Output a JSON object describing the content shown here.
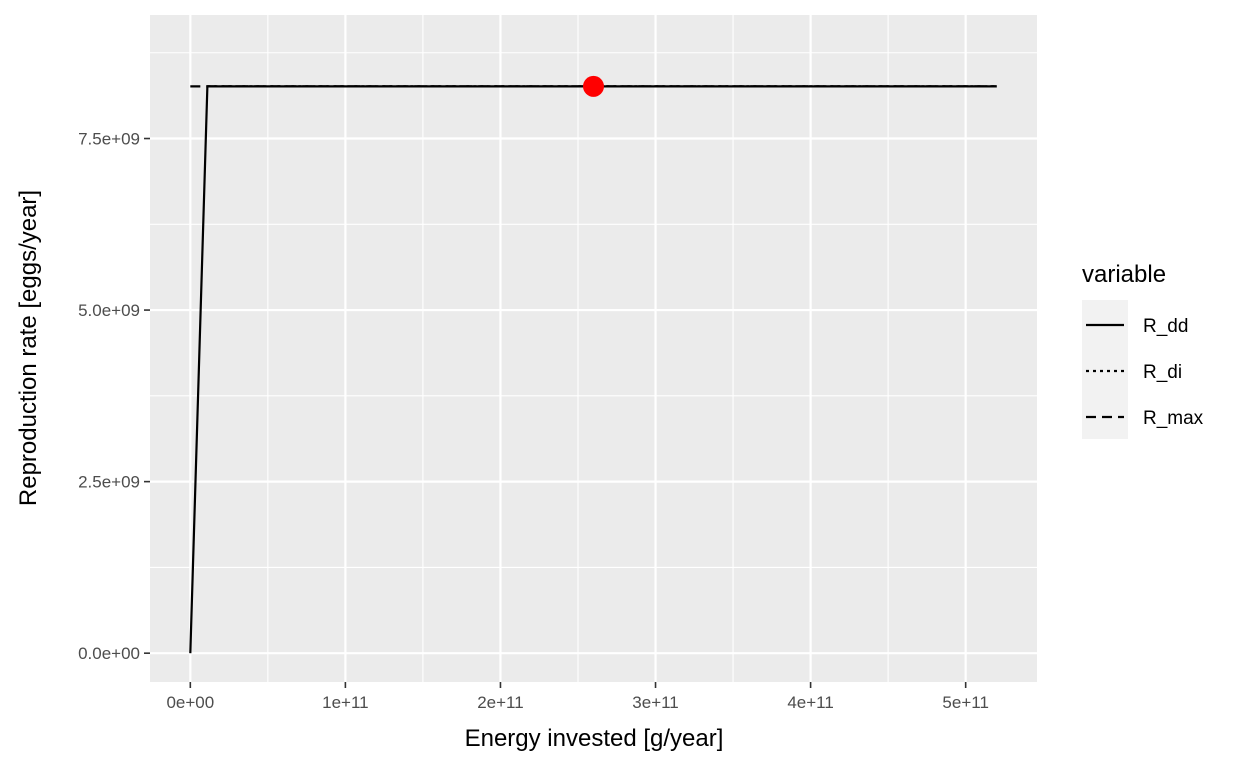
{
  "chart_data": {
    "type": "line",
    "title": "",
    "xlabel": "Energy invested [g/year]",
    "ylabel": "Reproduction rate [eggs/year]",
    "xlim": [
      -26000000000.0,
      546000000000.0
    ],
    "ylim": [
      -420000000.0,
      9300000000.0
    ],
    "x_ticks": [
      0,
      100000000000.0,
      200000000000.0,
      300000000000.0,
      400000000000.0,
      500000000000.0
    ],
    "x_tick_labels": [
      "0e+00",
      "1e+11",
      "2e+11",
      "3e+11",
      "4e+11",
      "5e+11"
    ],
    "y_ticks": [
      0,
      2500000000.0,
      5000000000.0,
      7500000000.0
    ],
    "y_tick_labels": [
      "0.0e+00",
      "2.5e+09",
      "5.0e+09",
      "7.5e+09"
    ],
    "grid": true,
    "background": "#ebebeb",
    "legend": {
      "title": "variable",
      "position": "right",
      "entries": [
        "R_dd",
        "R_di",
        "R_max"
      ]
    },
    "series": [
      {
        "name": "R_dd",
        "linetype": "solid",
        "color": "#000000",
        "x": [
          0,
          11000000000.0,
          520000000000.0
        ],
        "y": [
          0,
          8260000000.0,
          8260000000.0
        ]
      },
      {
        "name": "R_di",
        "linetype": "dotted",
        "color": "#000000",
        "x": [
          11000000000.0,
          520000000000.0
        ],
        "y": [
          8260000000.0,
          8260000000.0
        ]
      },
      {
        "name": "R_max",
        "linetype": "dashed",
        "color": "#000000",
        "x": [
          0,
          520000000000.0
        ],
        "y": [
          8260000000.0,
          8260000000.0
        ]
      }
    ],
    "points": [
      {
        "x": 260000000000.0,
        "y": 8260000000.0,
        "color": "#ff0000"
      }
    ]
  }
}
